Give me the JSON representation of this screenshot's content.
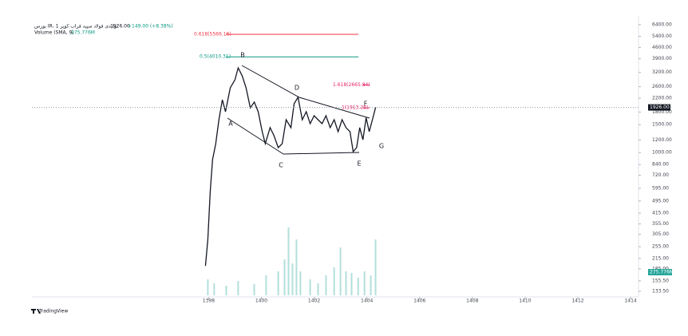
{
  "chart_data": {
    "type": "line",
    "title": "بورس IR، تولیدی فولاد سپید فراب کویر 1",
    "last_price": "1926.00",
    "change": "+149.00 (+8.38%)",
    "volume_title": "Volume (SMA, 9)",
    "volume_sma": "275.776M",
    "brand": "TradingView",
    "log_scale": true,
    "xlim": [
      1391.3,
      1414.3
    ],
    "xticks": [
      1398,
      1400,
      1402,
      1404,
      1406,
      1408,
      1410,
      1412,
      1414
    ],
    "ylim": [
      126,
      7260
    ],
    "yticks": [
      {
        "value": 6400,
        "label": "6400.00"
      },
      {
        "value": 5400,
        "label": "5400.00"
      },
      {
        "value": 4600,
        "label": "4600.00"
      },
      {
        "value": 3900,
        "label": "3900.00"
      },
      {
        "value": 3200,
        "label": "3200.00"
      },
      {
        "value": 2600,
        "label": "2600.00"
      },
      {
        "value": 2200,
        "label": "2200.00"
      },
      {
        "value": 1800,
        "label": "1800.00"
      },
      {
        "value": 1500,
        "label": "1500.00"
      },
      {
        "value": 1200,
        "label": "1200.00"
      },
      {
        "value": 1000,
        "label": "1000.00"
      },
      {
        "value": 840,
        "label": "840.00"
      },
      {
        "value": 720,
        "label": "720.00"
      },
      {
        "value": 595,
        "label": "595.00"
      },
      {
        "value": 495,
        "label": "495.00"
      },
      {
        "value": 415,
        "label": "415.00"
      },
      {
        "value": 355,
        "label": "355.00"
      },
      {
        "value": 305,
        "label": "305.00"
      },
      {
        "value": 255,
        "label": "255.00"
      },
      {
        "value": 215,
        "label": "215.00"
      },
      {
        "value": 185,
        "label": "185.00"
      },
      {
        "value": 155.5,
        "label": "155.50"
      },
      {
        "value": 133.5,
        "label": "133.50"
      }
    ],
    "series": [
      {
        "name": "Price",
        "color": "#131722",
        "x": [
          1397.88,
          1397.97,
          1398.06,
          1398.15,
          1398.27,
          1398.39,
          1398.52,
          1398.64,
          1398.82,
          1399.0,
          1399.12,
          1399.27,
          1399.42,
          1399.58,
          1399.73,
          1399.88,
          1400.03,
          1400.15,
          1400.33,
          1400.48,
          1400.64,
          1400.79,
          1400.94,
          1401.12,
          1401.24,
          1401.39,
          1401.55,
          1401.7,
          1401.85,
          1402.0,
          1402.15,
          1402.3,
          1402.45,
          1402.61,
          1402.76,
          1402.91,
          1403.06,
          1403.21,
          1403.36,
          1403.48,
          1403.61,
          1403.73,
          1403.85,
          1403.97,
          1404.09,
          1404.21,
          1404.33
        ],
        "values": [
          193,
          283,
          568,
          902,
          1138,
          1611,
          2152,
          1808,
          2558,
          2876,
          3420,
          3048,
          2558,
          1915,
          2080,
          1808,
          1355,
          1138,
          1437,
          1277,
          1074,
          1138,
          1611,
          1437,
          2032,
          2230,
          1611,
          1808,
          1521,
          1707,
          1611,
          1521,
          1707,
          1437,
          1611,
          1355,
          1611,
          1437,
          1355,
          1014,
          1074,
          1437,
          1205,
          1658,
          1355,
          1611,
          1926
        ]
      }
    ],
    "volume": {
      "color": "#b2dfdb",
      "ylim": [
        0,
        1290
      ],
      "x": [
        1397.97,
        1398.21,
        1398.67,
        1399.12,
        1399.73,
        1400.18,
        1400.64,
        1400.88,
        1401.03,
        1401.18,
        1401.33,
        1401.48,
        1401.85,
        1402.15,
        1402.45,
        1402.76,
        1403.0,
        1403.21,
        1403.42,
        1403.67,
        1403.91,
        1404.15,
        1404.33
      ],
      "values": [
        191,
        143,
        115,
        172,
        134,
        239,
        287,
        430,
        812,
        382,
        669,
        287,
        191,
        143,
        239,
        335,
        573,
        287,
        268,
        210,
        287,
        239,
        669
      ]
    },
    "fib_levels": [
      {
        "label": "0.618(5566.16)",
        "value": 5566.16,
        "color": "#f23645"
      },
      {
        "label": "0.5(4010.31)",
        "value": 4010.31,
        "color": "#089981"
      },
      {
        "label": "1.618(2665.84)",
        "value": 2665.84,
        "color": "#e91e63"
      },
      {
        "label": "1(1913.28)",
        "value": 1913.28,
        "color": "#e91e63"
      }
    ],
    "pattern_labels": [
      "A",
      "B",
      "C",
      "D",
      "E",
      "F",
      "G"
    ]
  }
}
